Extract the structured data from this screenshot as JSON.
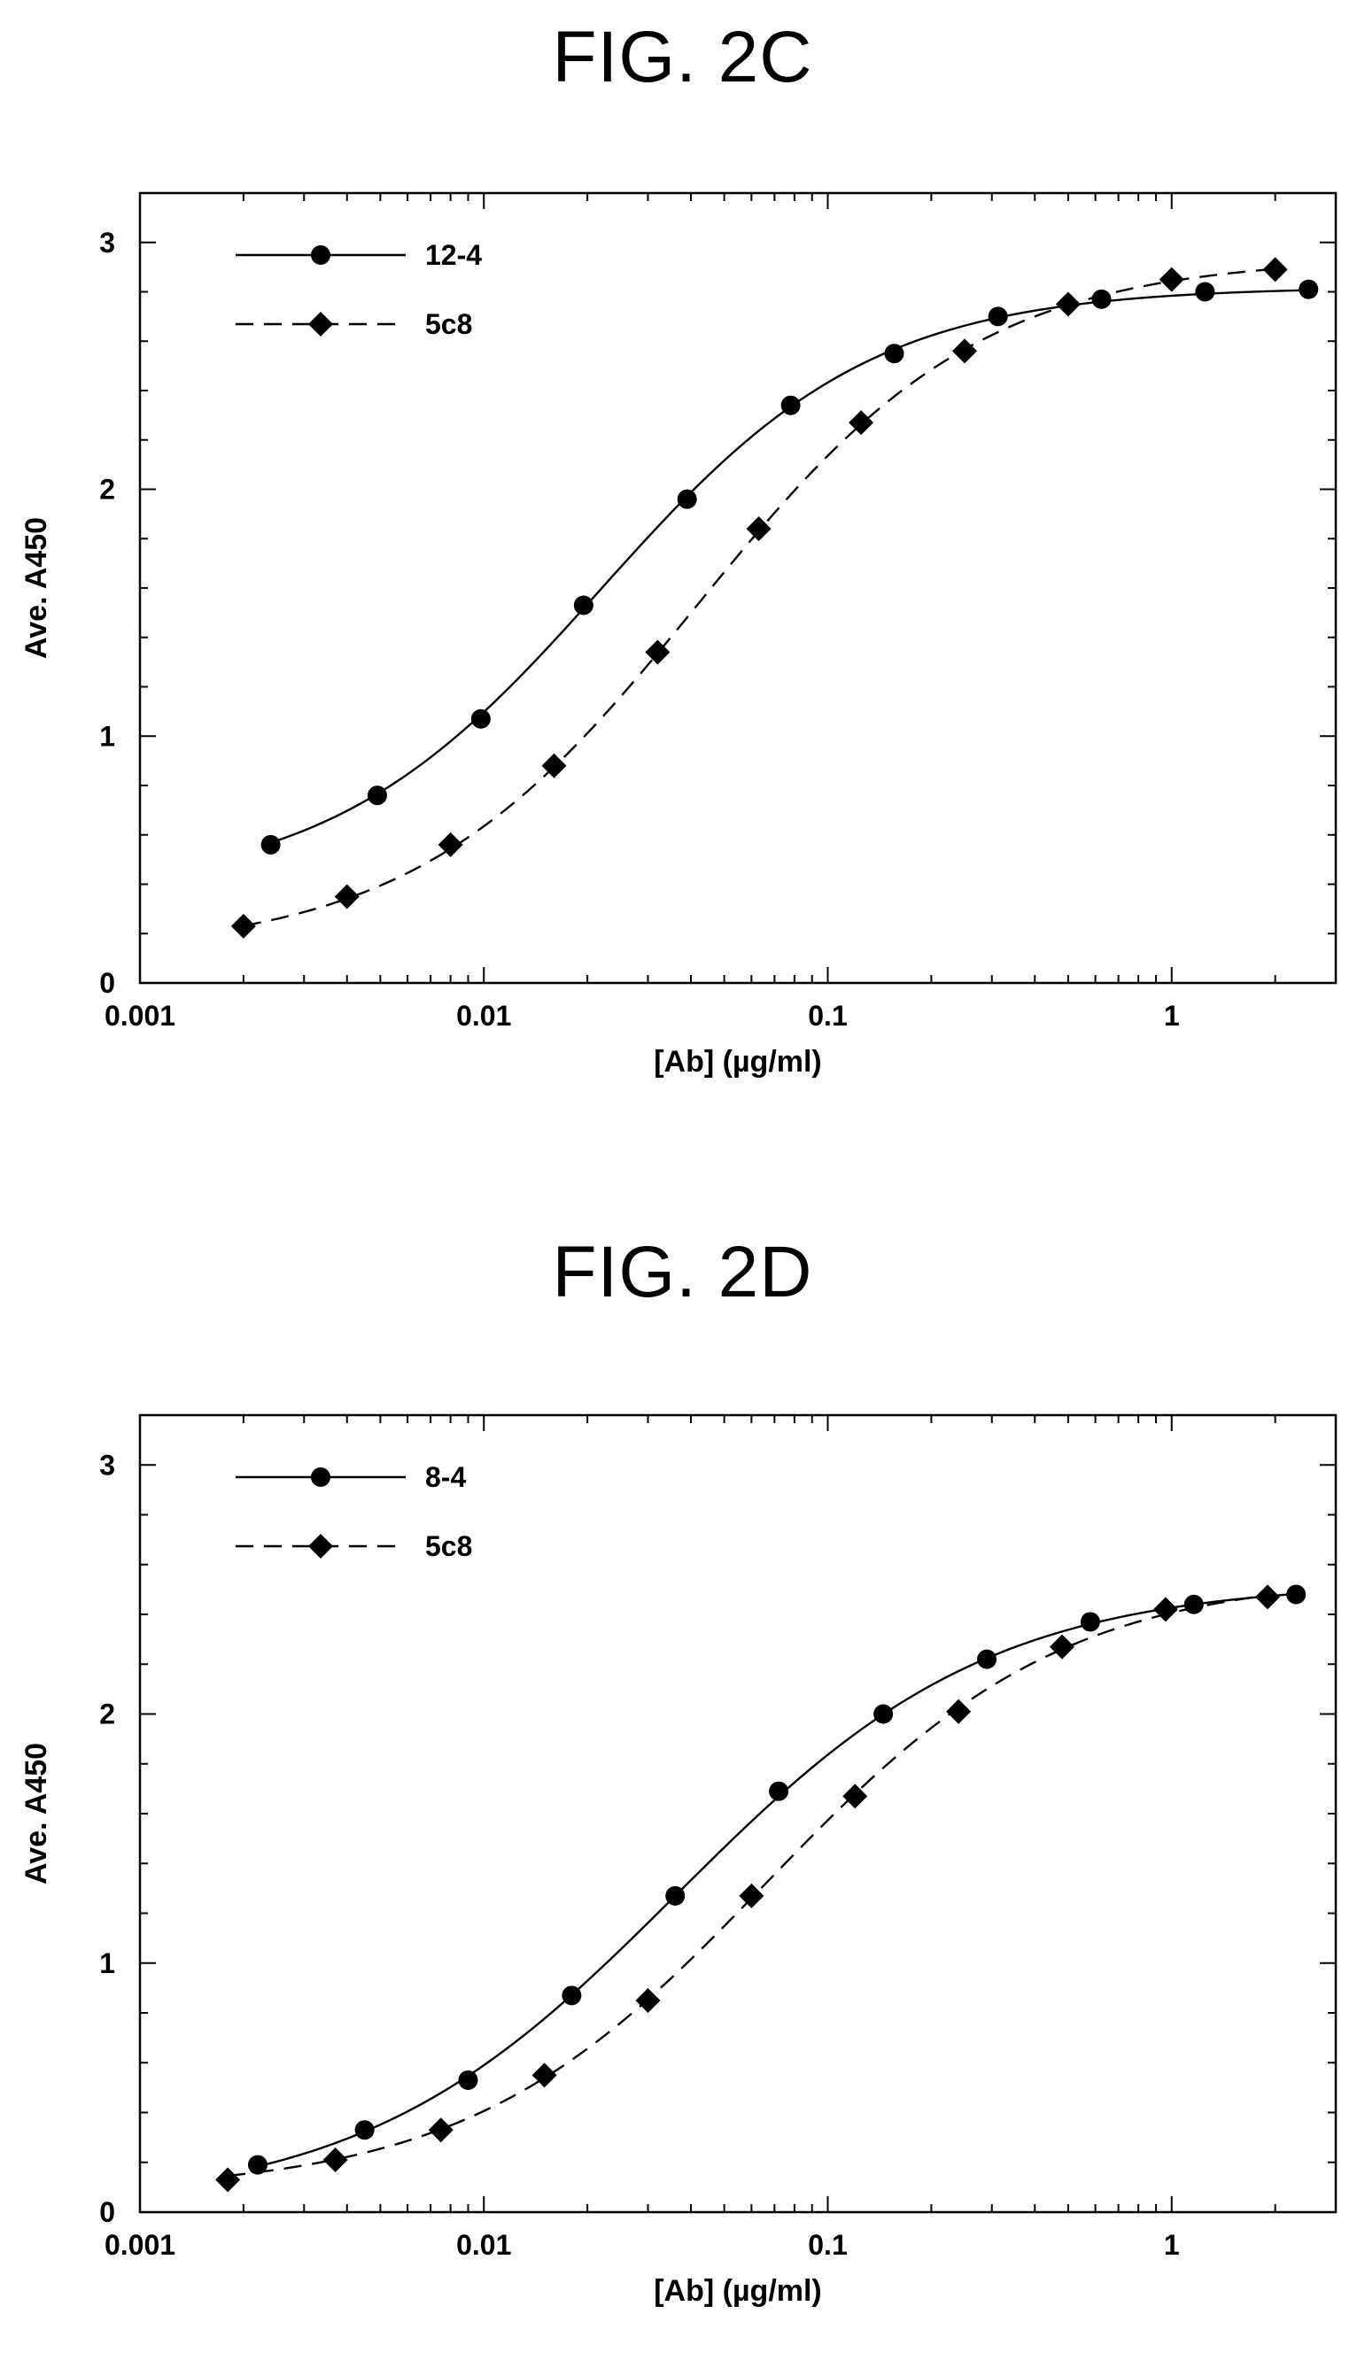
{
  "figures": {
    "fig2c": {
      "title": "FIG. 2C"
    },
    "fig2d": {
      "title": "FIG. 2D"
    }
  },
  "chart_data": [
    {
      "type": "line",
      "title": "FIG. 2C",
      "xlabel": "[Ab]  (µg/ml)",
      "ylabel": "Ave. A450",
      "x_scale": "log",
      "xlim": [
        0.001,
        3.0
      ],
      "ylim": [
        0,
        3.2
      ],
      "x_ticks": [
        0.001,
        0.01,
        0.1,
        1
      ],
      "x_tick_labels": [
        "0.001",
        "0.01",
        "0.1",
        "1"
      ],
      "y_ticks": [
        0,
        1,
        2,
        3
      ],
      "y_tick_labels": [
        "0",
        "1",
        "2",
        "3"
      ],
      "grid": false,
      "legend_position": "top-left",
      "series": [
        {
          "name": "12-4",
          "marker": "circle",
          "line_style": "solid",
          "x": [
            0.0024,
            0.0049,
            0.0098,
            0.0195,
            0.039,
            0.078,
            0.156,
            0.3125,
            0.625,
            1.25,
            2.5
          ],
          "y": [
            0.56,
            0.76,
            1.07,
            1.53,
            1.96,
            2.34,
            2.55,
            2.7,
            2.77,
            2.8,
            2.81
          ]
        },
        {
          "name": "5c8",
          "marker": "diamond",
          "line_style": "dashed",
          "x": [
            0.002,
            0.004,
            0.008,
            0.016,
            0.032,
            0.063,
            0.125,
            0.25,
            0.5,
            1.0,
            2.0
          ],
          "y": [
            0.23,
            0.35,
            0.56,
            0.88,
            1.34,
            1.84,
            2.27,
            2.56,
            2.75,
            2.85,
            2.89
          ]
        }
      ]
    },
    {
      "type": "line",
      "title": "FIG. 2D",
      "xlabel": "[Ab]  (µg/ml)",
      "ylabel": "Ave. A450",
      "x_scale": "log",
      "xlim": [
        0.001,
        3.0
      ],
      "ylim": [
        0,
        3.2
      ],
      "x_ticks": [
        0.001,
        0.01,
        0.1,
        1
      ],
      "x_tick_labels": [
        "0.001",
        "0.01",
        "0.1",
        "1"
      ],
      "y_ticks": [
        0,
        1,
        2,
        3
      ],
      "y_tick_labels": [
        "0",
        "1",
        "2",
        "3"
      ],
      "grid": false,
      "legend_position": "top-left",
      "series": [
        {
          "name": "8-4",
          "marker": "circle",
          "line_style": "solid",
          "x": [
            0.0022,
            0.0045,
            0.009,
            0.018,
            0.036,
            0.072,
            0.145,
            0.29,
            0.58,
            1.16,
            2.3
          ],
          "y": [
            0.19,
            0.33,
            0.53,
            0.87,
            1.27,
            1.69,
            2.0,
            2.22,
            2.37,
            2.44,
            2.48
          ]
        },
        {
          "name": "5c8",
          "marker": "diamond",
          "line_style": "dashed",
          "x": [
            0.0018,
            0.0037,
            0.0075,
            0.015,
            0.03,
            0.06,
            0.12,
            0.24,
            0.48,
            0.96,
            1.9
          ],
          "y": [
            0.13,
            0.21,
            0.33,
            0.55,
            0.85,
            1.27,
            1.67,
            2.01,
            2.27,
            2.42,
            2.47
          ]
        }
      ]
    }
  ]
}
